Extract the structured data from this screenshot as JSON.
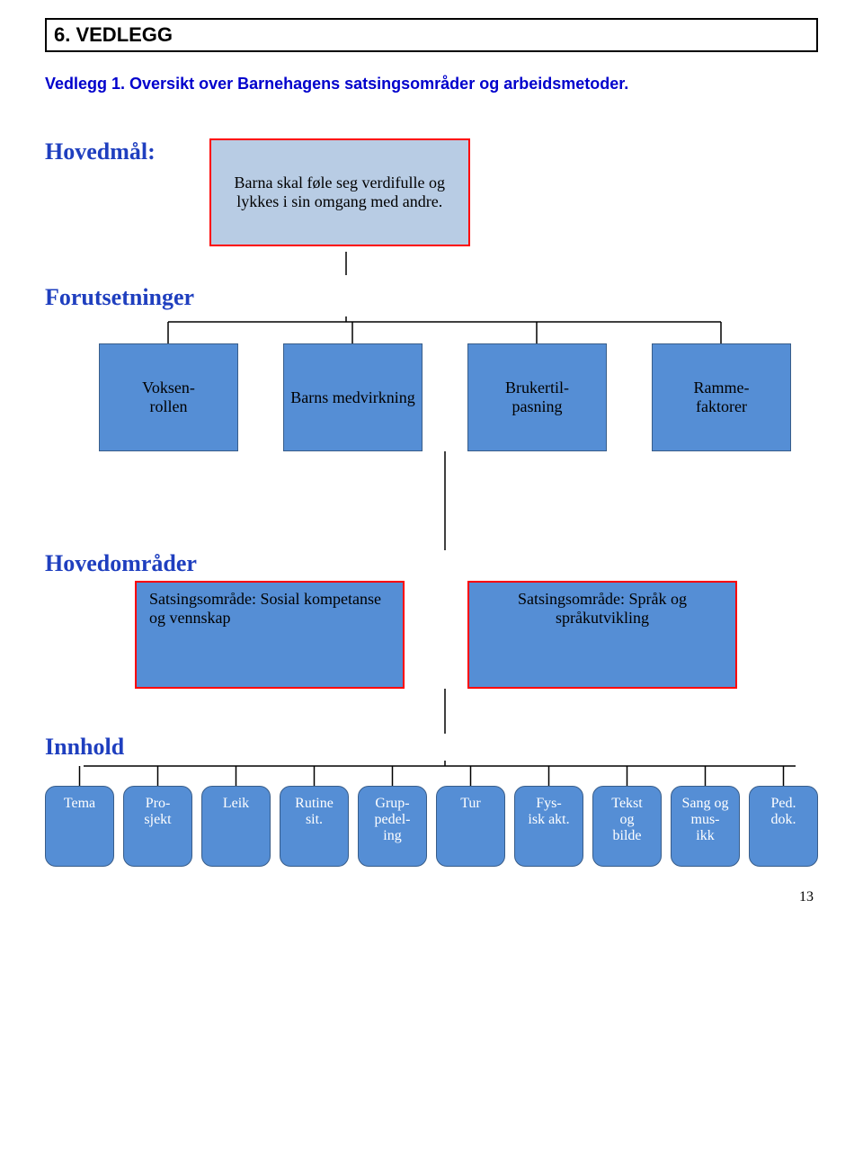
{
  "colors": {
    "headerText": "#000000",
    "blueText": "#0000cc",
    "blueLabel": "#1f3fbf",
    "redBorder": "#ff0000",
    "goalFill": "#b8cce4",
    "smallBoxFill": "#558ed5",
    "smallBoxBorder": "#385d8a",
    "hovedFill": "#558ed5",
    "pillFill": "#558ed5",
    "pillBorder": "#385d8a",
    "black": "#000000",
    "white": "#ffffff"
  },
  "header": {
    "title": "6. VEDLEGG",
    "subtitle": "Vedlegg 1. Oversikt over Barnehagens satsingsområder og arbeidsmetoder."
  },
  "goal": {
    "label": "Hovedmål:",
    "text": "Barna skal føle seg verdifulle og lykkes i sin omgang med andre."
  },
  "forutsetninger": {
    "label": "Forutsetninger",
    "items": [
      "Voksen-rollen",
      "Barns medvirkning",
      "Brukertil-pasning",
      "Ramme-faktorer"
    ]
  },
  "hovedomrader": {
    "label": "Hovedområder",
    "items": [
      "Satsingsområde: Sosial kompetanse og vennskap",
      "Satsingsområde: Språk og språkutvikling"
    ]
  },
  "innhold": {
    "label": "Innhold",
    "items": [
      "Tema",
      "Pro-sjekt",
      "Leik",
      "Rutine sit.",
      "Grup-pedel-ing",
      "Tur",
      "Fys-isk akt.",
      "Tekst og bilde",
      "Sang og mus-ikk",
      "Ped. dok."
    ]
  },
  "pageNumber": "13"
}
